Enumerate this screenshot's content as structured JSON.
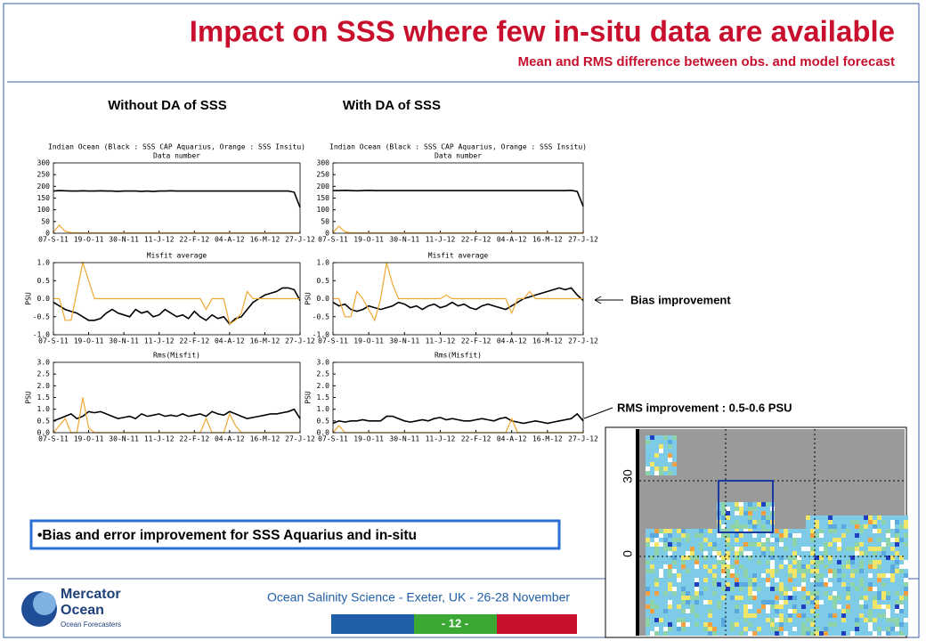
{
  "header": {
    "title": "Impact on SSS where few in-situ data are available",
    "subtitle": "Mean and RMS difference between obs. and model forecast"
  },
  "columns": [
    "Without DA of SSS",
    "With DA of SSS"
  ],
  "chart_data": [
    {
      "type": "line",
      "title": "Indian Ocean (Black : SSS CAP Aquarius, Orange : SSS Insitu)",
      "subtitle": "Data number",
      "categories": [
        "07-S-11",
        null,
        null,
        null,
        null,
        null,
        "19-O-11",
        null,
        null,
        null,
        null,
        null,
        "30-N-11",
        null,
        null,
        null,
        null,
        null,
        "11-J-12",
        null,
        null,
        null,
        null,
        null,
        "22-F-12",
        null,
        null,
        null,
        null,
        null,
        "04-A-12",
        null,
        null,
        null,
        null,
        null,
        "16-M-12",
        null,
        null,
        null,
        null,
        null,
        "27-J-12"
      ],
      "series": [
        {
          "color": "#000000",
          "values": [
            180,
            182,
            181,
            180,
            180,
            181,
            180,
            180,
            181,
            180,
            180,
            179,
            180,
            180,
            180,
            179,
            180,
            178,
            180,
            180,
            181,
            180,
            180,
            180,
            180,
            180,
            180,
            180,
            180,
            180,
            180,
            180,
            180,
            180,
            180,
            180,
            180,
            180,
            180,
            180,
            180,
            175,
            110
          ]
        },
        {
          "color": "#f0a830",
          "values": [
            5,
            35,
            8,
            3,
            2,
            2,
            2,
            2,
            2,
            2,
            2,
            2,
            2,
            2,
            2,
            2,
            2,
            2,
            2,
            2,
            2,
            2,
            2,
            2,
            2,
            2,
            2,
            2,
            2,
            2,
            2,
            2,
            2,
            2,
            2,
            2,
            2,
            2,
            2,
            2,
            2,
            2,
            2
          ]
        }
      ],
      "ylim": [
        0,
        300
      ],
      "yticks": [
        0,
        50,
        100,
        150,
        200,
        250,
        300
      ]
    },
    {
      "type": "line",
      "title": "Misfit average",
      "ylabel": "PSU",
      "categories": [
        "07-S-11",
        null,
        null,
        null,
        null,
        null,
        "19-O-11",
        null,
        null,
        null,
        null,
        null,
        "30-N-11",
        null,
        null,
        null,
        null,
        null,
        "11-J-12",
        null,
        null,
        null,
        null,
        null,
        "22-F-12",
        null,
        null,
        null,
        null,
        null,
        "04-A-12",
        null,
        null,
        null,
        null,
        null,
        "16-M-12",
        null,
        null,
        null,
        null,
        null,
        "27-J-12"
      ],
      "series": [
        {
          "color": "#000000",
          "values": [
            -0.1,
            -0.2,
            -0.3,
            -0.35,
            -0.4,
            -0.5,
            -0.6,
            -0.6,
            -0.55,
            -0.4,
            -0.3,
            -0.4,
            -0.45,
            -0.5,
            -0.3,
            -0.4,
            -0.35,
            -0.5,
            -0.45,
            -0.3,
            -0.4,
            -0.5,
            -0.45,
            -0.55,
            -0.35,
            -0.5,
            -0.6,
            -0.45,
            -0.55,
            -0.5,
            -0.7,
            -0.55,
            -0.5,
            -0.3,
            -0.1,
            0.0,
            0.1,
            0.15,
            0.2,
            0.3,
            0.3,
            0.25,
            -0.05
          ]
        },
        {
          "color": "#f0a830",
          "values": [
            0,
            0,
            -0.6,
            -0.6,
            0.2,
            1.0,
            0.5,
            0,
            0,
            0,
            0,
            0,
            0,
            0,
            0,
            0,
            0,
            0,
            0,
            0,
            0,
            0,
            0,
            0,
            0,
            0,
            -0.3,
            0,
            0,
            0,
            -0.7,
            -0.6,
            -0.4,
            0.2,
            0,
            0,
            0,
            0,
            0,
            0,
            0,
            0,
            0
          ]
        }
      ],
      "ylim": [
        -1,
        1
      ],
      "yticks": [
        {
          "value": -1,
          "label": "-1.0"
        },
        -0.5,
        {
          "value": 0,
          "label": "0.0"
        },
        0.5,
        {
          "value": 1,
          "label": "1.0"
        }
      ]
    },
    {
      "type": "line",
      "title": "Rms(Misfit)",
      "ylabel": "PSU",
      "categories": [
        "07-S-11",
        null,
        null,
        null,
        null,
        null,
        "19-O-11",
        null,
        null,
        null,
        null,
        null,
        "30-N-11",
        null,
        null,
        null,
        null,
        null,
        "11-J-12",
        null,
        null,
        null,
        null,
        null,
        "22-F-12",
        null,
        null,
        null,
        null,
        null,
        "04-A-12",
        null,
        null,
        null,
        null,
        null,
        "16-M-12",
        null,
        null,
        null,
        null,
        null,
        "27-J-12"
      ],
      "series": [
        {
          "color": "#000000",
          "values": [
            0.5,
            0.6,
            0.7,
            0.8,
            0.6,
            0.7,
            0.9,
            0.85,
            0.9,
            0.8,
            0.7,
            0.6,
            0.65,
            0.7,
            0.6,
            0.8,
            0.7,
            0.75,
            0.8,
            0.7,
            0.75,
            0.7,
            0.8,
            0.7,
            0.75,
            0.8,
            0.7,
            0.9,
            0.8,
            0.75,
            0.9,
            0.8,
            0.7,
            0.6,
            0.65,
            0.7,
            0.75,
            0.8,
            0.8,
            0.85,
            0.9,
            1.0,
            0.6
          ]
        },
        {
          "color": "#f0a830",
          "values": [
            0,
            0.3,
            0.6,
            0,
            0,
            1.5,
            0.2,
            0,
            0,
            0,
            0,
            0,
            0,
            0,
            0,
            0,
            0,
            0,
            0,
            0,
            0,
            0,
            0,
            0,
            0,
            0,
            0.6,
            0,
            0,
            0,
            0.8,
            0.3,
            0,
            0,
            0,
            0,
            0,
            0,
            0,
            0,
            0,
            0,
            0
          ]
        }
      ],
      "ylim": [
        0,
        3
      ],
      "yticks": [
        {
          "value": 0,
          "label": "0.0"
        },
        0.5,
        {
          "value": 1,
          "label": "1.0"
        },
        1.5,
        {
          "value": 2,
          "label": "2.0"
        },
        2.5,
        {
          "value": 3,
          "label": "3.0"
        }
      ]
    },
    {
      "type": "line",
      "title": "Indian Ocean (Black : SSS CAP Aquarius, Orange : SSS Insitu)",
      "subtitle": "Data number",
      "categories": [
        "07-S-11",
        null,
        null,
        null,
        null,
        null,
        "19-O-11",
        null,
        null,
        null,
        null,
        null,
        "30-N-11",
        null,
        null,
        null,
        null,
        null,
        "11-J-12",
        null,
        null,
        null,
        null,
        null,
        "22-F-12",
        null,
        null,
        null,
        null,
        null,
        "04-A-12",
        null,
        null,
        null,
        null,
        null,
        "16-M-12",
        null,
        null,
        null,
        null,
        null,
        "27-J-12"
      ],
      "series": [
        {
          "color": "#000000",
          "values": [
            182,
            182,
            183,
            182,
            181,
            182,
            183,
            182,
            182,
            182,
            182,
            182,
            182,
            182,
            182,
            182,
            182,
            182,
            182,
            182,
            182,
            182,
            182,
            182,
            182,
            182,
            182,
            182,
            182,
            182,
            182,
            182,
            182,
            182,
            182,
            182,
            182,
            182,
            182,
            182,
            183,
            178,
            115
          ]
        },
        {
          "color": "#f0a830",
          "values": [
            3,
            30,
            6,
            2,
            2,
            2,
            2,
            2,
            2,
            2,
            2,
            2,
            2,
            2,
            2,
            2,
            2,
            2,
            2,
            2,
            2,
            2,
            2,
            2,
            2,
            2,
            2,
            2,
            2,
            2,
            2,
            2,
            2,
            2,
            2,
            2,
            2,
            2,
            2,
            2,
            2,
            2,
            2
          ]
        }
      ],
      "ylim": [
        0,
        300
      ],
      "yticks": [
        0,
        50,
        100,
        150,
        200,
        250,
        300
      ]
    },
    {
      "type": "line",
      "title": "Misfit average",
      "ylabel": "PSU",
      "categories": [
        "07-S-11",
        null,
        null,
        null,
        null,
        null,
        "19-O-11",
        null,
        null,
        null,
        null,
        null,
        "30-N-11",
        null,
        null,
        null,
        null,
        null,
        "11-J-12",
        null,
        null,
        null,
        null,
        null,
        "22-F-12",
        null,
        null,
        null,
        null,
        null,
        "04-A-12",
        null,
        null,
        null,
        null,
        null,
        "16-M-12",
        null,
        null,
        null,
        null,
        null,
        "27-J-12"
      ],
      "series": [
        {
          "color": "#000000",
          "values": [
            -0.1,
            -0.2,
            -0.15,
            -0.3,
            -0.35,
            -0.3,
            -0.2,
            -0.25,
            -0.3,
            -0.25,
            -0.2,
            -0.1,
            -0.15,
            -0.25,
            -0.2,
            -0.3,
            -0.2,
            -0.15,
            -0.25,
            -0.2,
            -0.1,
            -0.2,
            -0.15,
            -0.25,
            -0.3,
            -0.2,
            -0.15,
            -0.2,
            -0.25,
            -0.3,
            -0.2,
            -0.1,
            0.0,
            0.05,
            0.1,
            0.15,
            0.2,
            0.25,
            0.3,
            0.25,
            0.3,
            0.1,
            -0.05
          ]
        },
        {
          "color": "#f0a830",
          "values": [
            0,
            0,
            -0.5,
            -0.5,
            0.2,
            0,
            -0.3,
            -0.6,
            0,
            1.0,
            0.4,
            0,
            0,
            0,
            0,
            0,
            0,
            0,
            0,
            0.1,
            0,
            0,
            0,
            0,
            0,
            0,
            0,
            0,
            0,
            0,
            -0.4,
            0,
            0,
            0.2,
            0,
            0,
            0,
            0,
            0,
            0,
            0,
            0,
            0
          ]
        }
      ],
      "ylim": [
        -1,
        1
      ],
      "yticks": [
        {
          "value": -1,
          "label": "-1.0"
        },
        -0.5,
        {
          "value": 0,
          "label": "0.0"
        },
        0.5,
        {
          "value": 1,
          "label": "1.0"
        }
      ]
    },
    {
      "type": "line",
      "title": "Rms(Misfit)",
      "ylabel": "PSU",
      "categories": [
        "07-S-11",
        null,
        null,
        null,
        null,
        null,
        "19-O-11",
        null,
        null,
        null,
        null,
        null,
        "30-N-11",
        null,
        null,
        null,
        null,
        null,
        "11-J-12",
        null,
        null,
        null,
        null,
        null,
        "22-F-12",
        null,
        null,
        null,
        null,
        null,
        "04-A-12",
        null,
        null,
        null,
        null,
        null,
        "16-M-12",
        null,
        null,
        null,
        null,
        null,
        "27-J-12"
      ],
      "series": [
        {
          "color": "#000000",
          "values": [
            0.4,
            0.5,
            0.45,
            0.5,
            0.5,
            0.55,
            0.5,
            0.5,
            0.5,
            0.7,
            0.7,
            0.6,
            0.5,
            0.45,
            0.5,
            0.55,
            0.5,
            0.6,
            0.65,
            0.55,
            0.6,
            0.55,
            0.5,
            0.5,
            0.55,
            0.6,
            0.55,
            0.5,
            0.6,
            0.65,
            0.5,
            0.45,
            0.4,
            0.45,
            0.5,
            0.45,
            0.4,
            0.45,
            0.5,
            0.55,
            0.6,
            0.8,
            0.5
          ]
        },
        {
          "color": "#f0a830",
          "values": [
            0,
            0.3,
            0,
            0,
            0,
            0,
            0,
            0,
            0,
            0,
            0,
            0,
            0,
            0,
            0,
            0,
            0,
            0,
            0,
            0,
            0,
            0,
            0,
            0,
            0,
            0,
            0,
            0,
            0,
            0,
            0.6,
            0,
            0,
            0,
            0,
            0,
            0,
            0,
            0,
            0,
            0,
            0,
            0
          ]
        }
      ],
      "ylim": [
        0,
        3
      ],
      "yticks": [
        {
          "value": 0,
          "label": "0.0"
        },
        0.5,
        {
          "value": 1,
          "label": "1.0"
        },
        1.5,
        {
          "value": 2,
          "label": "2.0"
        },
        2.5,
        {
          "value": 3,
          "label": "3.0"
        }
      ]
    }
  ],
  "annotations": [
    "Bias improvement",
    "RMS improvement : 0.5-0.6 PSU"
  ],
  "bullet": "•Bias and error improvement for SSS Aquarius and in-situ",
  "map": {
    "lat_labels": [
      "30",
      "0"
    ]
  },
  "footer": {
    "text": "Ocean Salinity Science - Exeter, UK - 26-28 November",
    "page": "- 12 -",
    "logo": [
      "Mercator",
      "Ocean",
      "Ocean Forecasters"
    ]
  }
}
